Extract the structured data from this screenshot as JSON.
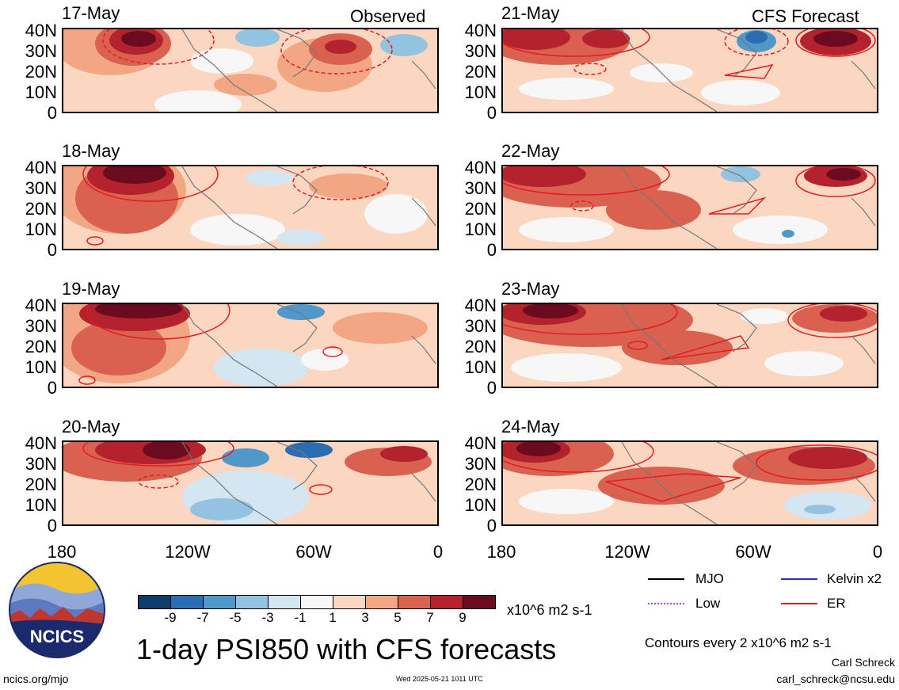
{
  "observed_label": "Observed",
  "forecast_label": "CFS Forecast",
  "lat_labels": [
    "40N",
    "30N",
    "20N",
    "10N",
    "0"
  ],
  "lon_labels": [
    "180",
    "120W",
    "60W",
    "0"
  ],
  "observed_panels": [
    {
      "date": "17-May"
    },
    {
      "date": "18-May"
    },
    {
      "date": "19-May"
    },
    {
      "date": "20-May"
    }
  ],
  "forecast_panels": [
    {
      "date": "21-May"
    },
    {
      "date": "22-May"
    },
    {
      "date": "23-May"
    },
    {
      "date": "24-May"
    }
  ],
  "colorbar": {
    "colors": [
      "#0d3c6d",
      "#2a6db2",
      "#4f98c9",
      "#93c3df",
      "#d3e6f1",
      "#f7f7f7",
      "#fbd6c1",
      "#f3a683",
      "#da6150",
      "#b3222d",
      "#6a0b1f"
    ],
    "ticks": [
      "-9",
      "-7",
      "-5",
      "-3",
      "-1",
      "1",
      "3",
      "5",
      "7",
      "9"
    ],
    "units": "x10^6 m2 s-1"
  },
  "legend": {
    "items": [
      {
        "label": "MJO",
        "color": "#000000"
      },
      {
        "label": "Kelvin x2",
        "color": "#2b2bd0"
      },
      {
        "label": "Low",
        "color": "#9b4fc9"
      },
      {
        "label": "ER",
        "color": "#e8191f"
      }
    ],
    "contour_note": "Contours every 2 x10^6 m2 s-1"
  },
  "title": "1-day PSI850 with CFS forecasts",
  "logo_text": "NCICS",
  "footer": {
    "url": "ncics.org/mjo",
    "timestamp": "Wed 2025-05-21 1011 UTC",
    "author": "Carl Schreck",
    "email": "carl_schreck@ncsu.edu"
  }
}
